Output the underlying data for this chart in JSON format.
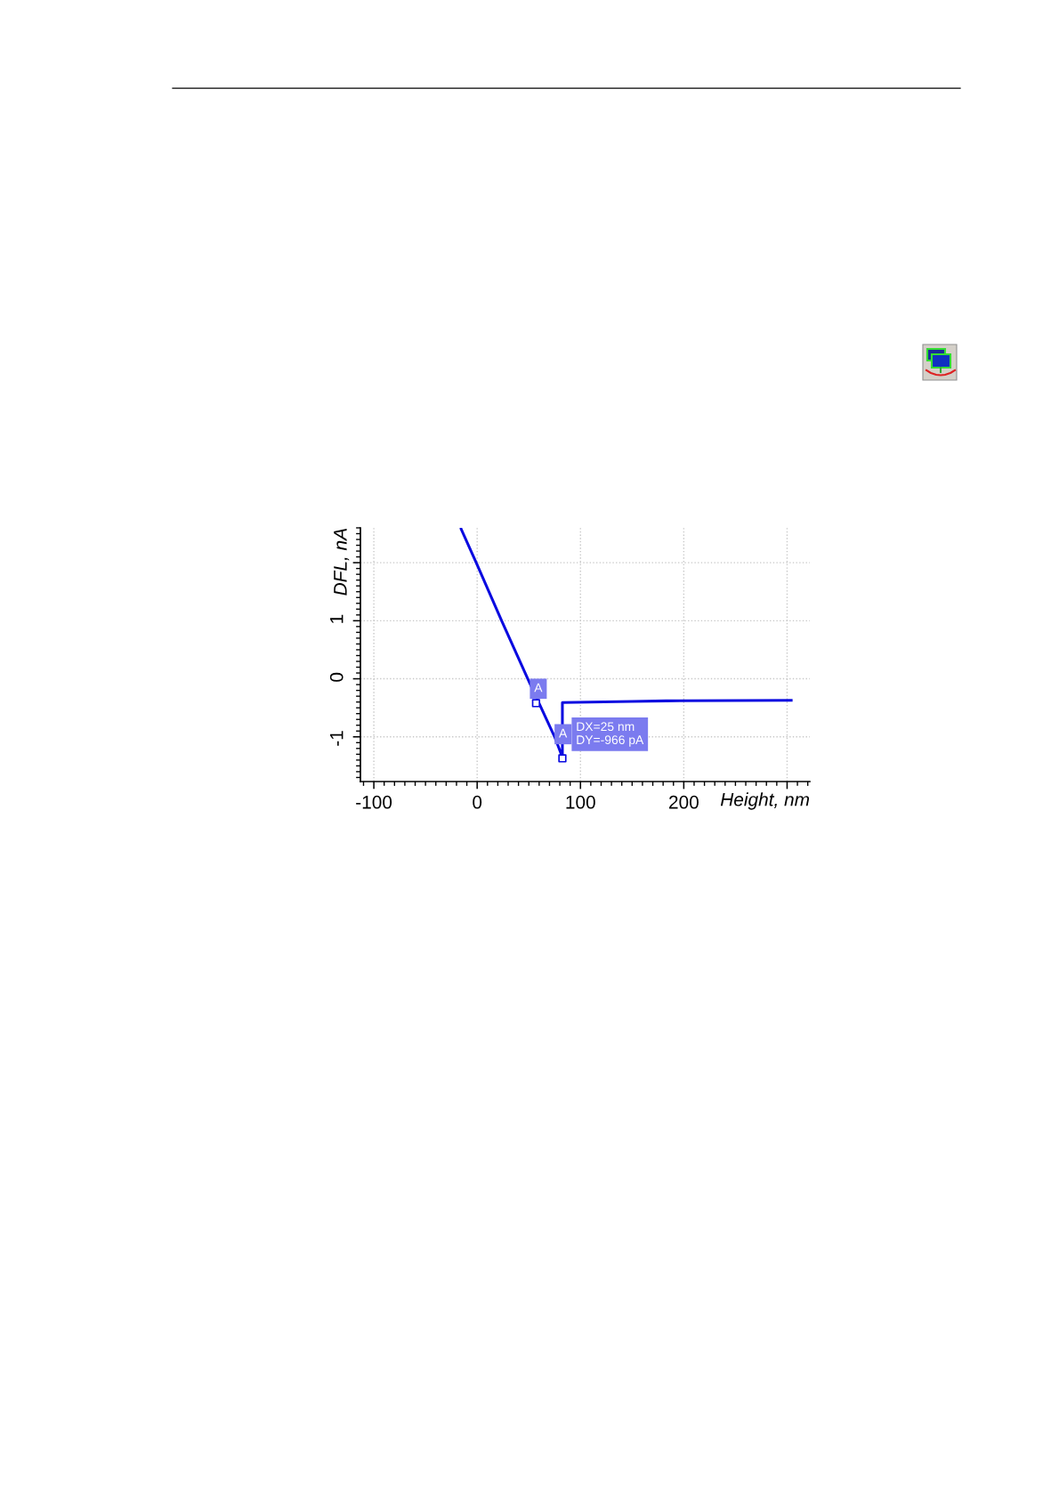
{
  "chart_data": {
    "type": "line",
    "xlabel": "Height, nm",
    "ylabel": "DFL, nA",
    "xlim": [
      -113,
      322
    ],
    "ylim": [
      -1.77,
      2.6
    ],
    "xticks": [
      -100,
      0,
      100,
      200,
      {
        "value": 300,
        "label": null
      }
    ],
    "yticks": [
      -1,
      0,
      1,
      {
        "value": 2,
        "label": null
      }
    ],
    "grid": true,
    "line_style": "solid",
    "marker": "none",
    "series": [
      {
        "color": "#0a0ae0",
        "x": [
          -15.5,
          -0.9,
          23.7,
          49,
          75,
          82.5,
          82.5,
          150,
          183,
          304
        ],
        "values": [
          2.58,
          2.0,
          1.0,
          0.0,
          -1.0,
          -1.35,
          -0.41,
          -0.39,
          -0.38,
          -0.37
        ]
      },
      {
        "type": "scatter",
        "color": "#0a0ae0",
        "marker": "square",
        "x": [
          57,
          82.5
        ],
        "values": [
          -0.42,
          -1.37
        ]
      }
    ],
    "annotations": [
      "A",
      "A",
      "DX=25 nm\nDY=-966 pA"
    ]
  }
}
